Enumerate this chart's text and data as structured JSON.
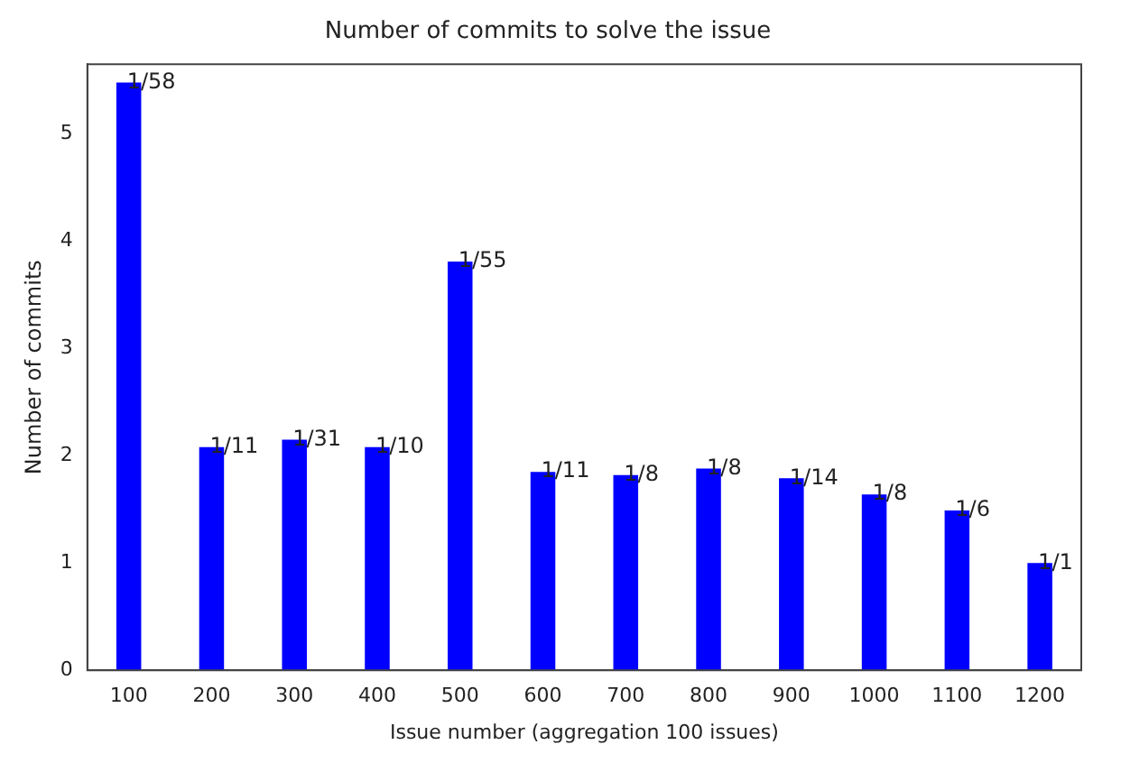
{
  "chart_data": {
    "type": "bar",
    "title": "Number of commits to solve the issue",
    "xlabel": "Issue number (aggregation 100 issues)",
    "ylabel": "Number of commits",
    "categories": [
      "100",
      "200",
      "300",
      "400",
      "500",
      "600",
      "700",
      "800",
      "900",
      "1000",
      "1100",
      "1200"
    ],
    "series": [
      {
        "color": "#0000ff",
        "values": [
          5.48,
          2.08,
          2.15,
          2.08,
          3.81,
          1.85,
          1.82,
          1.88,
          1.79,
          1.64,
          1.49,
          1.0
        ]
      }
    ],
    "annotations": [
      {
        "text": "1/58",
        "x": "100",
        "y": 5.48
      },
      {
        "text": "1/11",
        "x": "200",
        "y": 2.08
      },
      {
        "text": "1/31",
        "x": "300",
        "y": 2.15
      },
      {
        "text": "1/10",
        "x": "400",
        "y": 2.08
      },
      {
        "text": "1/55",
        "x": "500",
        "y": 3.81
      },
      {
        "text": "1/11",
        "x": "600",
        "y": 1.85
      },
      {
        "text": "1/8",
        "x": "700",
        "y": 1.82
      },
      {
        "text": "1/8",
        "x": "800",
        "y": 1.88
      },
      {
        "text": "1/14",
        "x": "900",
        "y": 1.79
      },
      {
        "text": "1/8",
        "x": "1000",
        "y": 1.64
      },
      {
        "text": "1/6",
        "x": "1100",
        "y": 1.49
      },
      {
        "text": "1/1",
        "x": "1200",
        "y": 1.0
      }
    ],
    "ylim": [
      0,
      5.65
    ],
    "yticks": [
      0,
      1,
      2,
      3,
      4,
      5
    ],
    "grid": false,
    "legend": false
  }
}
